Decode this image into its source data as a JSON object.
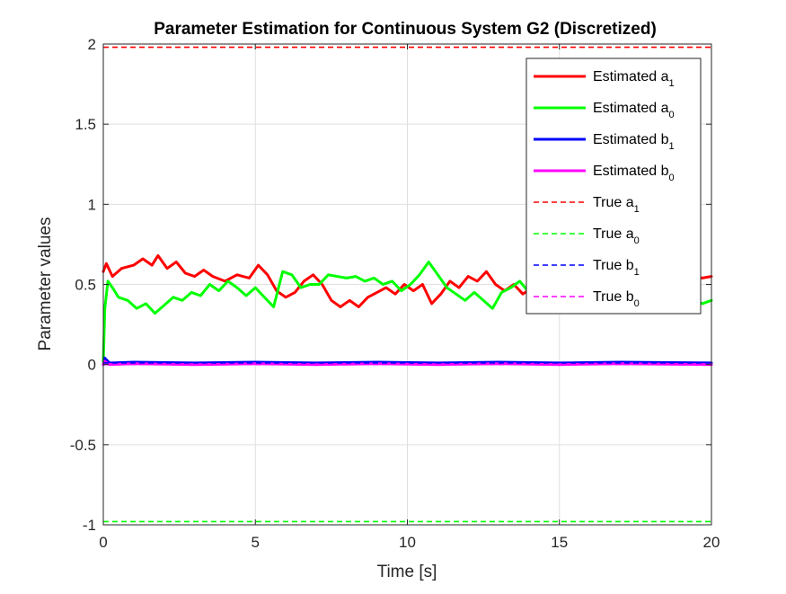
{
  "chart_data": {
    "type": "line",
    "title": "Parameter Estimation for Continuous System G2 (Discretized)",
    "xlabel": "Time [s]",
    "ylabel": "Parameter values",
    "xlim": [
      0,
      20
    ],
    "ylim": [
      -1,
      2
    ],
    "x_ticks": [
      0,
      5,
      10,
      15,
      20
    ],
    "x_tick_labels": [
      "0",
      "5",
      "10",
      "15",
      "20"
    ],
    "y_ticks": [
      -1,
      -0.5,
      0,
      0.5,
      1,
      1.5,
      2
    ],
    "y_tick_labels": [
      "-1",
      "-0.5",
      "0",
      "0.5",
      "1",
      "1.5",
      "2"
    ],
    "grid": true,
    "legend_position": "top-right",
    "series": [
      {
        "name": "Estimated a",
        "name_sub": "1",
        "color": "#ff0000",
        "style": "solid",
        "points": [
          [
            0,
            0.58
          ],
          [
            0.1,
            0.63
          ],
          [
            0.3,
            0.55
          ],
          [
            0.6,
            0.6
          ],
          [
            1.0,
            0.62
          ],
          [
            1.3,
            0.66
          ],
          [
            1.6,
            0.62
          ],
          [
            1.8,
            0.68
          ],
          [
            2.1,
            0.6
          ],
          [
            2.4,
            0.64
          ],
          [
            2.7,
            0.57
          ],
          [
            3.0,
            0.55
          ],
          [
            3.3,
            0.59
          ],
          [
            3.6,
            0.55
          ],
          [
            4.0,
            0.52
          ],
          [
            4.4,
            0.56
          ],
          [
            4.8,
            0.54
          ],
          [
            5.1,
            0.62
          ],
          [
            5.4,
            0.56
          ],
          [
            5.7,
            0.46
          ],
          [
            6.0,
            0.42
          ],
          [
            6.3,
            0.45
          ],
          [
            6.6,
            0.52
          ],
          [
            6.9,
            0.56
          ],
          [
            7.2,
            0.5
          ],
          [
            7.5,
            0.4
          ],
          [
            7.8,
            0.36
          ],
          [
            8.1,
            0.4
          ],
          [
            8.4,
            0.36
          ],
          [
            8.7,
            0.42
          ],
          [
            9.0,
            0.45
          ],
          [
            9.3,
            0.48
          ],
          [
            9.6,
            0.44
          ],
          [
            9.9,
            0.5
          ],
          [
            10.2,
            0.46
          ],
          [
            10.5,
            0.5
          ],
          [
            10.8,
            0.38
          ],
          [
            11.1,
            0.44
          ],
          [
            11.4,
            0.52
          ],
          [
            11.7,
            0.48
          ],
          [
            12.0,
            0.55
          ],
          [
            12.3,
            0.52
          ],
          [
            12.6,
            0.58
          ],
          [
            12.9,
            0.5
          ],
          [
            13.2,
            0.46
          ],
          [
            13.5,
            0.5
          ],
          [
            13.8,
            0.44
          ],
          [
            14.1,
            0.48
          ],
          [
            14.4,
            0.5
          ],
          [
            14.8,
            0.53
          ],
          [
            15.3,
            0.55
          ],
          [
            15.8,
            0.52
          ],
          [
            16.3,
            0.55
          ],
          [
            16.8,
            0.53
          ],
          [
            17.3,
            0.55
          ],
          [
            17.8,
            0.52
          ],
          [
            18.3,
            0.54
          ],
          [
            18.8,
            0.52
          ],
          [
            19.3,
            0.55
          ],
          [
            19.7,
            0.54
          ],
          [
            20,
            0.55
          ]
        ]
      },
      {
        "name": "Estimated a",
        "name_sub": "0",
        "color": "#00ff00",
        "style": "solid",
        "points": [
          [
            0,
            0.02
          ],
          [
            0.05,
            0.35
          ],
          [
            0.15,
            0.52
          ],
          [
            0.3,
            0.48
          ],
          [
            0.5,
            0.42
          ],
          [
            0.8,
            0.4
          ],
          [
            1.1,
            0.35
          ],
          [
            1.4,
            0.38
          ],
          [
            1.7,
            0.32
          ],
          [
            2.0,
            0.37
          ],
          [
            2.3,
            0.42
          ],
          [
            2.6,
            0.4
          ],
          [
            2.9,
            0.45
          ],
          [
            3.2,
            0.43
          ],
          [
            3.5,
            0.5
          ],
          [
            3.8,
            0.46
          ],
          [
            4.1,
            0.52
          ],
          [
            4.4,
            0.48
          ],
          [
            4.7,
            0.43
          ],
          [
            5.0,
            0.48
          ],
          [
            5.3,
            0.42
          ],
          [
            5.6,
            0.36
          ],
          [
            5.9,
            0.58
          ],
          [
            6.2,
            0.56
          ],
          [
            6.5,
            0.48
          ],
          [
            6.8,
            0.5
          ],
          [
            7.1,
            0.5
          ],
          [
            7.4,
            0.56
          ],
          [
            7.7,
            0.55
          ],
          [
            8.0,
            0.54
          ],
          [
            8.3,
            0.55
          ],
          [
            8.6,
            0.52
          ],
          [
            8.9,
            0.54
          ],
          [
            9.2,
            0.5
          ],
          [
            9.5,
            0.52
          ],
          [
            9.8,
            0.46
          ],
          [
            10.1,
            0.5
          ],
          [
            10.4,
            0.56
          ],
          [
            10.7,
            0.64
          ],
          [
            11.0,
            0.56
          ],
          [
            11.3,
            0.48
          ],
          [
            11.6,
            0.44
          ],
          [
            11.9,
            0.4
          ],
          [
            12.2,
            0.45
          ],
          [
            12.5,
            0.4
          ],
          [
            12.8,
            0.35
          ],
          [
            13.1,
            0.45
          ],
          [
            13.4,
            0.48
          ],
          [
            13.7,
            0.52
          ],
          [
            14.0,
            0.45
          ],
          [
            14.3,
            0.5
          ],
          [
            14.8,
            0.48
          ],
          [
            15.3,
            0.46
          ],
          [
            15.8,
            0.44
          ],
          [
            16.3,
            0.46
          ],
          [
            16.8,
            0.44
          ],
          [
            17.3,
            0.45
          ],
          [
            17.8,
            0.43
          ],
          [
            18.3,
            0.45
          ],
          [
            18.8,
            0.43
          ],
          [
            19.3,
            0.42
          ],
          [
            19.7,
            0.38
          ],
          [
            20,
            0.4
          ]
        ]
      },
      {
        "name": "Estimated b",
        "name_sub": "1",
        "color": "#0000ff",
        "style": "solid",
        "points": [
          [
            0,
            0.0
          ],
          [
            0.05,
            0.04
          ],
          [
            0.2,
            0.01
          ],
          [
            1,
            0.015
          ],
          [
            3,
            0.01
          ],
          [
            5,
            0.015
          ],
          [
            7,
            0.01
          ],
          [
            9,
            0.015
          ],
          [
            11,
            0.01
          ],
          [
            13,
            0.015
          ],
          [
            15,
            0.01
          ],
          [
            17,
            0.015
          ],
          [
            20,
            0.01
          ]
        ]
      },
      {
        "name": "Estimated b",
        "name_sub": "0",
        "color": "#ff00ff",
        "style": "solid",
        "points": [
          [
            0,
            0.0
          ],
          [
            0.05,
            0.02
          ],
          [
            0.2,
            0.0
          ],
          [
            1,
            0.005
          ],
          [
            3,
            0.0
          ],
          [
            5,
            0.005
          ],
          [
            7,
            0.0
          ],
          [
            9,
            0.005
          ],
          [
            11,
            0.0
          ],
          [
            13,
            0.005
          ],
          [
            15,
            0.0
          ],
          [
            17,
            0.005
          ],
          [
            20,
            0.0
          ]
        ]
      },
      {
        "name": "True a",
        "name_sub": "1",
        "color": "#ff0000",
        "style": "dashed",
        "points": [
          [
            0,
            1.98
          ],
          [
            20,
            1.98
          ]
        ]
      },
      {
        "name": "True a",
        "name_sub": "0",
        "color": "#00ff00",
        "style": "dashed",
        "points": [
          [
            0,
            -0.98
          ],
          [
            20,
            -0.98
          ]
        ]
      },
      {
        "name": "True b",
        "name_sub": "1",
        "color": "#0000ff",
        "style": "dashed",
        "points": [
          [
            0,
            0.01
          ],
          [
            20,
            0.01
          ]
        ]
      },
      {
        "name": "True b",
        "name_sub": "0",
        "color": "#ff00ff",
        "style": "dashed",
        "points": [
          [
            0,
            0.0
          ],
          [
            20,
            0.0
          ]
        ]
      }
    ]
  }
}
